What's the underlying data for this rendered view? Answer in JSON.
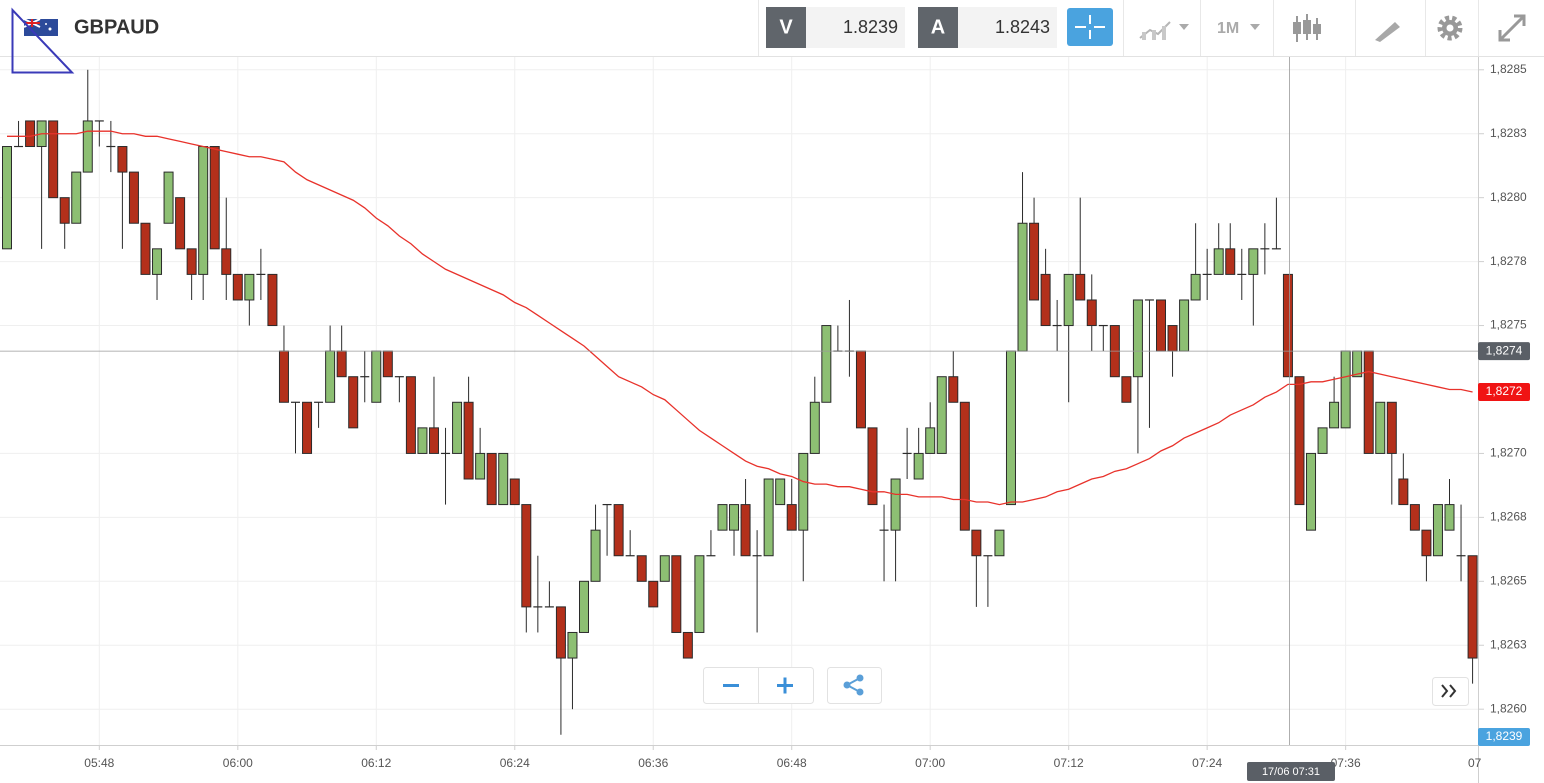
{
  "header": {
    "symbol": "GBPAUD",
    "sell_label": "V",
    "sell_price": "1.8239",
    "buy_label": "A",
    "buy_price": "1.8243",
    "timeframe": "1M"
  },
  "chart_data": {
    "type": "candlestick",
    "categories": [
      null,
      null,
      null,
      null,
      null,
      null,
      null,
      null,
      "05:48",
      null,
      null,
      null,
      null,
      null,
      null,
      null,
      null,
      null,
      null,
      null,
      "06:00",
      null,
      null,
      null,
      null,
      null,
      null,
      null,
      null,
      null,
      null,
      null,
      "06:12",
      null,
      null,
      null,
      null,
      null,
      null,
      null,
      null,
      null,
      null,
      null,
      "06:24",
      null,
      null,
      null,
      null,
      null,
      null,
      null,
      null,
      null,
      null,
      null,
      "06:36",
      null,
      null,
      null,
      null,
      null,
      null,
      null,
      null,
      null,
      null,
      null,
      "06:48",
      null,
      null,
      null,
      null,
      null,
      null,
      null,
      null,
      null,
      null,
      null,
      "07:00",
      null,
      null,
      null,
      null,
      null,
      null,
      null,
      null,
      null,
      null,
      null,
      "07:12",
      null,
      null,
      null,
      null,
      null,
      null,
      null,
      null,
      null,
      null,
      null,
      "07:24",
      null,
      null,
      null,
      null,
      null,
      null,
      null,
      null,
      null,
      null,
      null,
      "07:36",
      null,
      null,
      null,
      null,
      null,
      null,
      null,
      null,
      null,
      null,
      null
    ],
    "candles": [
      [
        1.8278,
        1.8282,
        1.8278,
        1.8282
      ],
      [
        1.8282,
        1.8283,
        1.8282,
        1.8282
      ],
      [
        1.8283,
        1.8283,
        1.8282,
        1.8282
      ],
      [
        1.8282,
        1.8283,
        1.8278,
        1.8283
      ],
      [
        1.8283,
        1.8283,
        1.828,
        1.828
      ],
      [
        1.828,
        1.828,
        1.8278,
        1.8279
      ],
      [
        1.8279,
        1.8281,
        1.8279,
        1.8281
      ],
      [
        1.8281,
        1.8285,
        1.8281,
        1.8283
      ],
      [
        1.8283,
        1.8283,
        1.8282,
        1.8283
      ],
      [
        1.8282,
        1.8283,
        1.8281,
        1.8282
      ],
      [
        1.8282,
        1.8282,
        1.8278,
        1.8281
      ],
      [
        1.8281,
        1.8281,
        1.8279,
        1.8279
      ],
      [
        1.8279,
        1.8279,
        1.8277,
        1.8277
      ],
      [
        1.8277,
        1.8278,
        1.8276,
        1.8278
      ],
      [
        1.8279,
        1.8281,
        1.8279,
        1.8281
      ],
      [
        1.828,
        1.828,
        1.8278,
        1.8278
      ],
      [
        1.8278,
        1.8278,
        1.8276,
        1.8277
      ],
      [
        1.8277,
        1.8282,
        1.8276,
        1.8282
      ],
      [
        1.8282,
        1.8282,
        1.8278,
        1.8278
      ],
      [
        1.8278,
        1.828,
        1.8276,
        1.8277
      ],
      [
        1.8277,
        1.8277,
        1.8276,
        1.8276
      ],
      [
        1.8276,
        1.8277,
        1.8275,
        1.8277
      ],
      [
        1.8277,
        1.8278,
        1.8276,
        1.8277
      ],
      [
        1.8277,
        1.8277,
        1.8275,
        1.8275
      ],
      [
        1.8274,
        1.8275,
        1.8272,
        1.8272
      ],
      [
        1.8272,
        1.8272,
        1.827,
        1.8272
      ],
      [
        1.8272,
        1.8272,
        1.827,
        1.827
      ],
      [
        1.8272,
        1.8272,
        1.8271,
        1.8272
      ],
      [
        1.8272,
        1.8275,
        1.8272,
        1.8274
      ],
      [
        1.8274,
        1.8275,
        1.8273,
        1.8273
      ],
      [
        1.8273,
        1.8273,
        1.8271,
        1.8271
      ],
      [
        1.8273,
        1.8274,
        1.8272,
        1.8273
      ],
      [
        1.8272,
        1.8274,
        1.8272,
        1.8274
      ],
      [
        1.8274,
        1.8274,
        1.8273,
        1.8273
      ],
      [
        1.8273,
        1.8273,
        1.8272,
        1.8273
      ],
      [
        1.8273,
        1.8273,
        1.827,
        1.827
      ],
      [
        1.827,
        1.8271,
        1.827,
        1.8271
      ],
      [
        1.8271,
        1.8273,
        1.827,
        1.827
      ],
      [
        1.827,
        1.8271,
        1.8268,
        1.827
      ],
      [
        1.827,
        1.8272,
        1.827,
        1.8272
      ],
      [
        1.8272,
        1.8273,
        1.8269,
        1.8269
      ],
      [
        1.8269,
        1.8271,
        1.8269,
        1.827
      ],
      [
        1.827,
        1.827,
        1.8268,
        1.8268
      ],
      [
        1.8268,
        1.827,
        1.8268,
        1.827
      ],
      [
        1.8269,
        1.8269,
        1.8268,
        1.8268
      ],
      [
        1.8268,
        1.8268,
        1.8263,
        1.8264
      ],
      [
        1.8264,
        1.8266,
        1.8263,
        1.8264
      ],
      [
        1.8264,
        1.8265,
        1.8264,
        1.8264
      ],
      [
        1.8264,
        1.8264,
        1.8259,
        1.8262
      ],
      [
        1.8262,
        1.8263,
        1.826,
        1.8263
      ],
      [
        1.8263,
        1.8265,
        1.8263,
        1.8265
      ],
      [
        1.8265,
        1.8268,
        1.8265,
        1.8267
      ],
      [
        1.8268,
        1.8268,
        1.8266,
        1.8268
      ],
      [
        1.8268,
        1.8268,
        1.8266,
        1.8266
      ],
      [
        1.8266,
        1.8267,
        1.8266,
        1.8266
      ],
      [
        1.8266,
        1.8266,
        1.8265,
        1.8265
      ],
      [
        1.8265,
        1.8265,
        1.8264,
        1.8264
      ],
      [
        1.8265,
        1.8266,
        1.8265,
        1.8266
      ],
      [
        1.8266,
        1.8266,
        1.8263,
        1.8263
      ],
      [
        1.8263,
        1.8263,
        1.8262,
        1.8262
      ],
      [
        1.8263,
        1.8266,
        1.8263,
        1.8266
      ],
      [
        1.8266,
        1.8267,
        1.8266,
        1.8266
      ],
      [
        1.8267,
        1.8268,
        1.8267,
        1.8268
      ],
      [
        1.8267,
        1.8268,
        1.8266,
        1.8268
      ],
      [
        1.8268,
        1.8269,
        1.8266,
        1.8266
      ],
      [
        1.8266,
        1.8267,
        1.8263,
        1.8266
      ],
      [
        1.8266,
        1.8269,
        1.8266,
        1.8269
      ],
      [
        1.8268,
        1.8269,
        1.8268,
        1.8269
      ],
      [
        1.8268,
        1.8269,
        1.8267,
        1.8267
      ],
      [
        1.8267,
        1.827,
        1.8265,
        1.827
      ],
      [
        1.827,
        1.8273,
        1.827,
        1.8272
      ],
      [
        1.8272,
        1.8275,
        1.8272,
        1.8275
      ],
      [
        1.8274,
        1.8275,
        1.8274,
        1.8274
      ],
      [
        1.8274,
        1.8276,
        1.8273,
        1.8274
      ],
      [
        1.8274,
        1.8274,
        1.8271,
        1.8271
      ],
      [
        1.8271,
        1.8271,
        1.8268,
        1.8268
      ],
      [
        1.8267,
        1.8268,
        1.8265,
        1.8267
      ],
      [
        1.8267,
        1.8269,
        1.8265,
        1.8269
      ],
      [
        1.827,
        1.8271,
        1.8269,
        1.827
      ],
      [
        1.8269,
        1.8271,
        1.8269,
        1.827
      ],
      [
        1.827,
        1.8272,
        1.827,
        1.8271
      ],
      [
        1.827,
        1.8273,
        1.827,
        1.8273
      ],
      [
        1.8273,
        1.8274,
        1.8272,
        1.8272
      ],
      [
        1.8272,
        1.8272,
        1.8267,
        1.8267
      ],
      [
        1.8267,
        1.8267,
        1.8264,
        1.8266
      ],
      [
        1.8266,
        1.8266,
        1.8264,
        1.8266
      ],
      [
        1.8266,
        1.8267,
        1.8266,
        1.8267
      ],
      [
        1.8268,
        1.8274,
        1.8268,
        1.8274
      ],
      [
        1.8274,
        1.8281,
        1.8274,
        1.8279
      ],
      [
        1.8279,
        1.828,
        1.8276,
        1.8276
      ],
      [
        1.8277,
        1.8278,
        1.8275,
        1.8275
      ],
      [
        1.8275,
        1.8276,
        1.8274,
        1.8275
      ],
      [
        1.8275,
        1.8277,
        1.8272,
        1.8277
      ],
      [
        1.8277,
        1.828,
        1.8276,
        1.8276
      ],
      [
        1.8276,
        1.8277,
        1.8274,
        1.8275
      ],
      [
        1.8275,
        1.8275,
        1.8274,
        1.8275
      ],
      [
        1.8275,
        1.8275,
        1.8273,
        1.8273
      ],
      [
        1.8273,
        1.8273,
        1.8272,
        1.8272
      ],
      [
        1.8273,
        1.8276,
        1.827,
        1.8276
      ],
      [
        1.8276,
        1.8276,
        1.8271,
        1.8276
      ],
      [
        1.8276,
        1.8276,
        1.8274,
        1.8274
      ],
      [
        1.8275,
        1.8275,
        1.8273,
        1.8274
      ],
      [
        1.8274,
        1.8276,
        1.8274,
        1.8276
      ],
      [
        1.8276,
        1.8279,
        1.8276,
        1.8277
      ],
      [
        1.8277,
        1.8278,
        1.8276,
        1.8277
      ],
      [
        1.8277,
        1.8279,
        1.8277,
        1.8278
      ],
      [
        1.8278,
        1.8279,
        1.8277,
        1.8277
      ],
      [
        1.8277,
        1.8278,
        1.8276,
        1.8277
      ],
      [
        1.8277,
        1.8278,
        1.8275,
        1.8278
      ],
      [
        1.8278,
        1.8279,
        1.8277,
        1.8278
      ],
      [
        1.8278,
        1.828,
        1.8278,
        1.8278
      ],
      [
        1.8277,
        1.8277,
        1.8273,
        1.8273
      ],
      [
        1.8273,
        1.8273,
        1.8268,
        1.8268
      ],
      [
        1.8267,
        1.827,
        1.8267,
        1.827
      ],
      [
        1.827,
        1.8271,
        1.827,
        1.8271
      ],
      [
        1.8271,
        1.8273,
        1.8271,
        1.8272
      ],
      [
        1.8271,
        1.8274,
        1.8271,
        1.8274
      ],
      [
        1.8273,
        1.8274,
        1.8273,
        1.8274
      ],
      [
        1.8274,
        1.8274,
        1.827,
        1.827
      ],
      [
        1.827,
        1.8272,
        1.827,
        1.8272
      ],
      [
        1.8272,
        1.8272,
        1.8268,
        1.827
      ],
      [
        1.8269,
        1.827,
        1.8268,
        1.8268
      ],
      [
        1.8268,
        1.8268,
        1.8267,
        1.8267
      ],
      [
        1.8267,
        1.8267,
        1.8265,
        1.8266
      ],
      [
        1.8266,
        1.8268,
        1.8266,
        1.8268
      ],
      [
        1.8267,
        1.8269,
        1.8267,
        1.8268
      ],
      [
        1.8266,
        1.8268,
        1.8265,
        1.8266
      ],
      [
        1.8266,
        1.8266,
        1.8261,
        1.8262
      ]
    ],
    "up_color": "#8dbf73",
    "down_color": "#b3301b",
    "ma": {
      "color": "#e8322b",
      "last_label": "1,8272",
      "values": [
        1.82824,
        1.82824,
        1.82824,
        1.82825,
        1.82825,
        1.82825,
        1.82825,
        1.82826,
        1.82826,
        1.82826,
        1.82825,
        1.82825,
        1.82824,
        1.82824,
        1.82823,
        1.82822,
        1.82821,
        1.8282,
        1.82819,
        1.82818,
        1.82817,
        1.82816,
        1.82816,
        1.82815,
        1.82814,
        1.8281,
        1.82807,
        1.82805,
        1.82803,
        1.82801,
        1.82799,
        1.82796,
        1.82792,
        1.82789,
        1.82785,
        1.82782,
        1.82778,
        1.82775,
        1.82772,
        1.8277,
        1.82768,
        1.82766,
        1.82764,
        1.82762,
        1.82759,
        1.82757,
        1.82754,
        1.82751,
        1.82748,
        1.82745,
        1.82742,
        1.82738,
        1.82734,
        1.8273,
        1.82728,
        1.82726,
        1.82723,
        1.82721,
        1.82717,
        1.82713,
        1.82709,
        1.82706,
        1.82703,
        1.827,
        1.82697,
        1.82695,
        1.82694,
        1.82692,
        1.82691,
        1.82689,
        1.82688,
        1.82688,
        1.82687,
        1.82687,
        1.82686,
        1.82685,
        1.82685,
        1.82684,
        1.82684,
        1.82683,
        1.82683,
        1.82683,
        1.82682,
        1.82682,
        1.82681,
        1.82681,
        1.8268,
        1.82681,
        1.82681,
        1.82682,
        1.82683,
        1.82685,
        1.82686,
        1.82688,
        1.8269,
        1.82691,
        1.82693,
        1.82694,
        1.82696,
        1.82698,
        1.82701,
        1.82703,
        1.82706,
        1.82708,
        1.8271,
        1.82712,
        1.82715,
        1.82717,
        1.82719,
        1.82722,
        1.82724,
        1.82727,
        1.82727,
        1.82728,
        1.82728,
        1.82729,
        1.8273,
        1.82731,
        1.82732,
        1.82731,
        1.8273,
        1.82729,
        1.82728,
        1.82727,
        1.82726,
        1.82725,
        1.82725,
        1.82724
      ]
    },
    "ylim": [
      1.82586,
      1.82855
    ],
    "yticks": [
      {
        "value": 1.8285,
        "label": "1,8285"
      },
      {
        "value": 1.82825,
        "label": "1,8283"
      },
      {
        "value": 1.828,
        "label": "1,8280"
      },
      {
        "value": 1.82775,
        "label": "1,8278"
      },
      {
        "value": 1.8275,
        "label": "1,8275"
      },
      {
        "value": 1.827,
        "label": "1,8270"
      },
      {
        "value": 1.82675,
        "label": "1,8268"
      },
      {
        "value": 1.8265,
        "label": "1,8265"
      },
      {
        "value": 1.82625,
        "label": "1,8263"
      },
      {
        "value": 1.826,
        "label": "1,8260"
      }
    ],
    "grid": true,
    "edge_label": "07",
    "crosshair": {
      "value": 1.8274,
      "label": "1,8274",
      "time_label": "17/06 07:31"
    },
    "bid_label": "1,8239"
  }
}
